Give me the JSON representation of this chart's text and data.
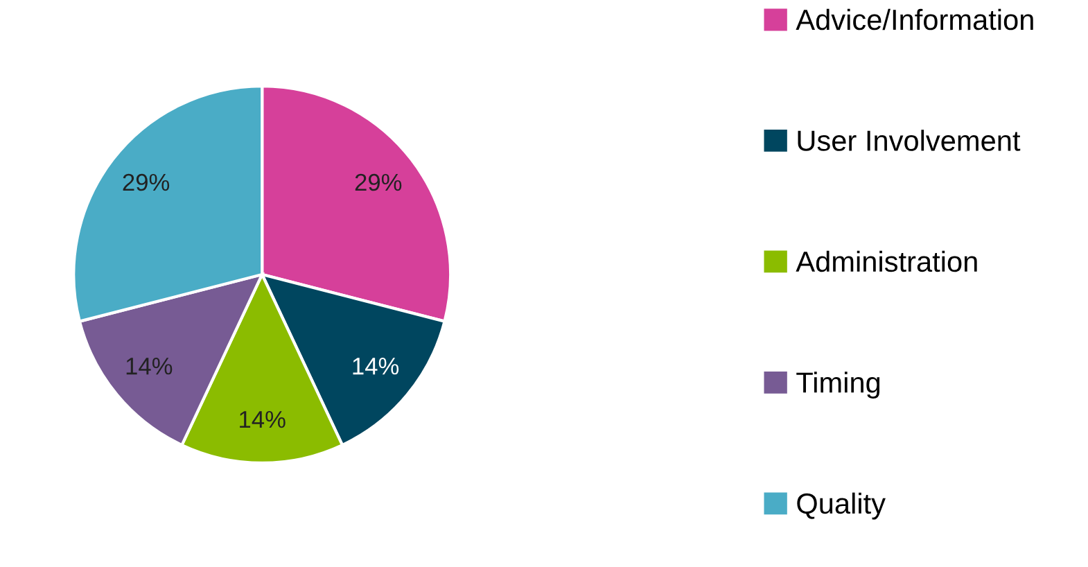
{
  "chart_data": {
    "type": "pie",
    "categories": [
      "Advice/Information",
      "User Involvement",
      "Administration",
      "Timing",
      "Quality"
    ],
    "values": [
      29,
      14,
      14,
      14,
      29
    ],
    "colors": [
      "#d6409a",
      "#00465f",
      "#8bbc00",
      "#775b94",
      "#4aacc6"
    ],
    "value_labels": [
      "29%",
      "14%",
      "14%",
      "14%",
      "29%"
    ],
    "legend": "right"
  }
}
